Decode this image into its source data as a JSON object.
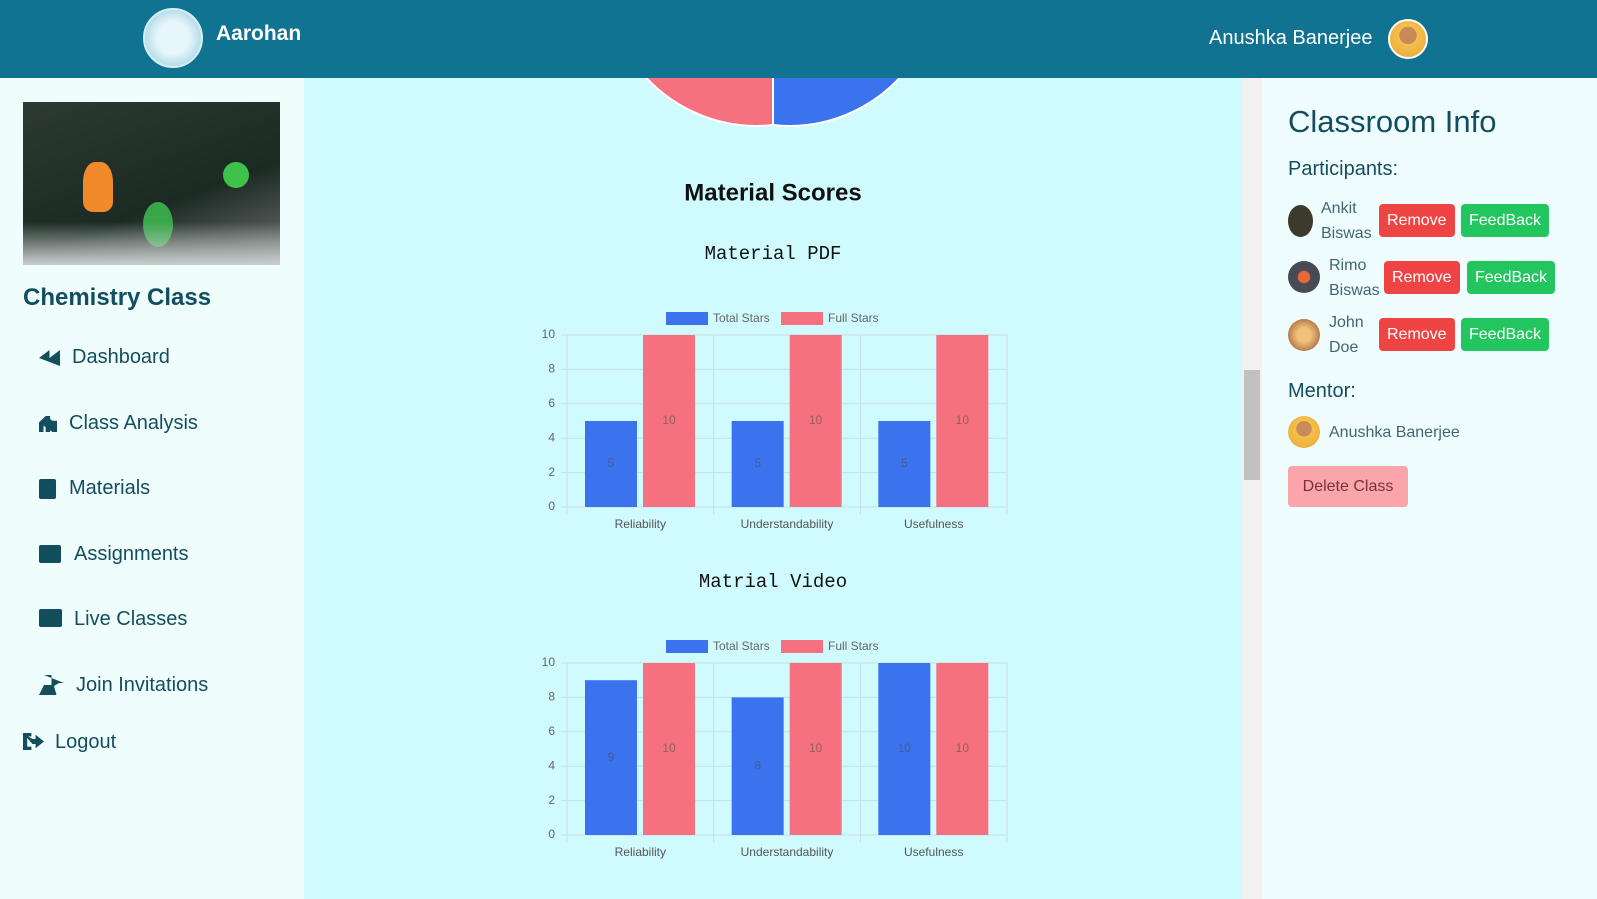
{
  "header": {
    "brand": "Aarohan",
    "user": "Anushka Banerjee"
  },
  "sidebar": {
    "class_name": "Chemistry Class",
    "nav": [
      "Dashboard",
      "Class Analysis",
      "Materials",
      "Assignments",
      "Live Classes",
      "Join Invitations",
      "Logout"
    ]
  },
  "main": {
    "section_title": "Material Scores"
  },
  "chart_data": [
    {
      "type": "bar",
      "title": "Material PDF",
      "categories": [
        "Reliability",
        "Understandability",
        "Usefulness"
      ],
      "series": [
        {
          "name": "Total Stars",
          "color": "#3b72ee",
          "values": [
            5,
            5,
            5
          ]
        },
        {
          "name": "Full Stars",
          "color": "#f6717f",
          "values": [
            10,
            10,
            10
          ]
        }
      ],
      "ylim": [
        0,
        10
      ],
      "yticks": [
        0,
        2,
        4,
        6,
        8,
        10
      ],
      "grid": true
    },
    {
      "type": "bar",
      "title": "Matrial Video",
      "categories": [
        "Reliability",
        "Understandability",
        "Usefulness"
      ],
      "series": [
        {
          "name": "Total Stars",
          "color": "#3b72ee",
          "values": [
            9,
            8,
            10
          ]
        },
        {
          "name": "Full Stars",
          "color": "#f6717f",
          "values": [
            10,
            10,
            10
          ]
        }
      ],
      "ylim": [
        0,
        10
      ],
      "yticks": [
        0,
        2,
        4,
        6,
        8,
        10
      ],
      "grid": true
    }
  ],
  "right": {
    "title": "Classroom Info",
    "participants_label": "Participants:",
    "participants": [
      "Ankit Biswas",
      "Rimo Biswas",
      "John Doe"
    ],
    "remove_label": "Remove",
    "feedback_label": "FeedBack",
    "mentor_label": "Mentor:",
    "mentor": "Anushka Banerjee",
    "delete_label": "Delete Class"
  }
}
